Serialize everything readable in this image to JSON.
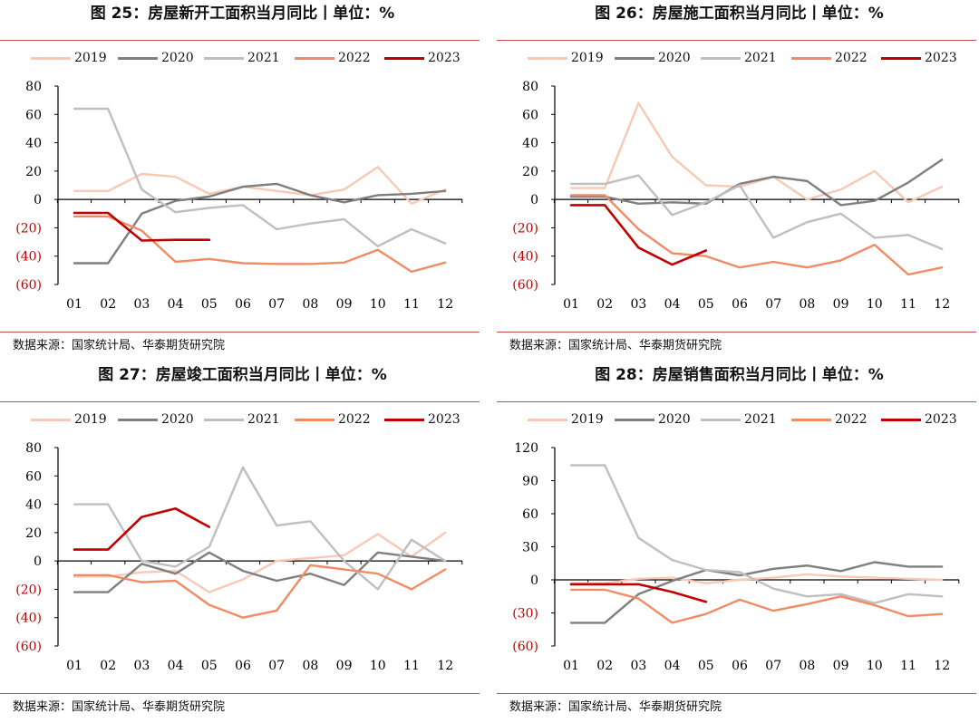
{
  "source_text": "数据来源：国家统计局、华泰期货研究院",
  "legend": [
    {
      "name": "2019",
      "color": "#f8c9b5"
    },
    {
      "name": "2020",
      "color": "#7f7f7f"
    },
    {
      "name": "2021",
      "color": "#bfbfbf"
    },
    {
      "name": "2022",
      "color": "#f08c64"
    },
    {
      "name": "2023",
      "color": "#c00000"
    }
  ],
  "chart_data": [
    {
      "type": "line",
      "title": "图 25：房屋新开工面积当月同比丨单位：%",
      "categories": [
        "01",
        "02",
        "03",
        "04",
        "05",
        "06",
        "07",
        "08",
        "09",
        "10",
        "11",
        "12"
      ],
      "ylim": [
        -60,
        80
      ],
      "yticks": [
        {
          "v": 80,
          "label": "80"
        },
        {
          "v": 60,
          "label": "60"
        },
        {
          "v": 40,
          "label": "40"
        },
        {
          "v": 20,
          "label": "20"
        },
        {
          "v": 0,
          "label": "0"
        },
        {
          "v": -20,
          "label": "(20)"
        },
        {
          "v": -40,
          "label": "(40)"
        },
        {
          "v": -60,
          "label": "(60)"
        }
      ],
      "series": [
        {
          "name": "2019",
          "values": [
            6,
            6,
            18,
            16,
            4,
            9,
            6,
            3,
            7,
            23,
            -3,
            7
          ]
        },
        {
          "name": "2020",
          "values": [
            -45,
            -45,
            -10,
            -1,
            2,
            9,
            11,
            3,
            -2,
            3,
            4,
            6
          ]
        },
        {
          "name": "2021",
          "values": [
            64,
            64,
            7,
            -9,
            -6,
            -4,
            -21,
            -17,
            -14,
            -33,
            -21,
            -31
          ]
        },
        {
          "name": "2022",
          "values": [
            -12,
            -12,
            -22,
            -44,
            -42,
            -45,
            -45.5,
            -45.5,
            -44.5,
            -35.5,
            -51,
            -44.5
          ]
        },
        {
          "name": "2023",
          "values": [
            -9.5,
            -9.5,
            -29,
            -28.5,
            -28.5,
            null,
            null,
            null,
            null,
            null,
            null,
            null
          ]
        }
      ]
    },
    {
      "type": "line",
      "title": "图 26：房屋施工面积当月同比丨单位：%",
      "categories": [
        "01",
        "02",
        "03",
        "04",
        "05",
        "06",
        "07",
        "08",
        "09",
        "10",
        "11",
        "12"
      ],
      "ylim": [
        -60,
        80
      ],
      "yticks": [
        {
          "v": 80,
          "label": "80"
        },
        {
          "v": 60,
          "label": "60"
        },
        {
          "v": 40,
          "label": "40"
        },
        {
          "v": 20,
          "label": "20"
        },
        {
          "v": 0,
          "label": "0"
        },
        {
          "v": -20,
          "label": "(20)"
        },
        {
          "v": -40,
          "label": "(40)"
        },
        {
          "v": -60,
          "label": "(60)"
        }
      ],
      "series": [
        {
          "name": "2019",
          "values": [
            8,
            8,
            68,
            30,
            10,
            9,
            16,
            0,
            7,
            20,
            -2,
            9
          ]
        },
        {
          "name": "2020",
          "values": [
            2,
            2,
            -3,
            -2,
            -3,
            11,
            16,
            13,
            -4,
            -1,
            12,
            28
          ]
        },
        {
          "name": "2021",
          "values": [
            11,
            11,
            17,
            -11,
            -2,
            10,
            -27,
            -16,
            -10,
            -27,
            -25,
            -35
          ]
        },
        {
          "name": "2022",
          "values": [
            3,
            3,
            -21,
            -38,
            -40,
            -48,
            -44,
            -48,
            -43,
            -32,
            -53,
            -48
          ]
        },
        {
          "name": "2023",
          "values": [
            -4,
            -4,
            -34,
            -46,
            -36,
            null,
            null,
            null,
            null,
            null,
            null,
            null
          ]
        }
      ]
    },
    {
      "type": "line",
      "title": "图 27：房屋竣工面积当月同比丨单位：%",
      "categories": [
        "01",
        "02",
        "03",
        "04",
        "05",
        "06",
        "07",
        "08",
        "09",
        "10",
        "11",
        "12"
      ],
      "ylim": [
        -60,
        80
      ],
      "yticks": [
        {
          "v": 80,
          "label": "80"
        },
        {
          "v": 60,
          "label": "60"
        },
        {
          "v": 40,
          "label": "40"
        },
        {
          "v": 20,
          "label": "20"
        },
        {
          "v": 0,
          "label": "0"
        },
        {
          "v": -20,
          "label": "(20)"
        },
        {
          "v": -40,
          "label": "(40)"
        },
        {
          "v": -60,
          "label": "(60)"
        }
      ],
      "series": [
        {
          "name": "2019",
          "values": [
            -11,
            -11,
            -8,
            -7,
            -22,
            -13,
            0,
            2,
            4,
            19,
            3,
            20
          ]
        },
        {
          "name": "2020",
          "values": [
            -22,
            -22,
            -2,
            -9,
            6,
            -7,
            -14,
            -9,
            -17,
            6,
            3,
            0
          ]
        },
        {
          "name": "2021",
          "values": [
            40,
            40,
            0,
            -4,
            10,
            66,
            25,
            28,
            0,
            -20,
            15,
            0
          ]
        },
        {
          "name": "2022",
          "values": [
            -10,
            -10,
            -15,
            -14,
            -31,
            -40,
            -35,
            -3,
            -6,
            -9,
            -20,
            -6
          ]
        },
        {
          "name": "2023",
          "values": [
            8,
            8,
            31,
            37,
            24,
            null,
            null,
            null,
            null,
            null,
            null,
            null
          ]
        }
      ]
    },
    {
      "type": "line",
      "title": "图 28：房屋销售面积当月同比丨单位：%",
      "categories": [
        "01",
        "02",
        "03",
        "04",
        "05",
        "06",
        "07",
        "08",
        "09",
        "10",
        "11",
        "12"
      ],
      "ylim": [
        -60,
        120
      ],
      "yticks": [
        {
          "v": 120,
          "label": "120"
        },
        {
          "v": 90,
          "label": "90"
        },
        {
          "v": 60,
          "label": "60"
        },
        {
          "v": 30,
          "label": "30"
        },
        {
          "v": 0,
          "label": "0"
        },
        {
          "v": -30,
          "label": "(30)"
        },
        {
          "v": -60,
          "label": "(60)"
        }
      ],
      "series": [
        {
          "name": "2019",
          "values": [
            -3,
            -3,
            1,
            2,
            -3,
            0,
            2,
            5,
            3,
            2,
            1,
            0
          ]
        },
        {
          "name": "2020",
          "values": [
            -39,
            -39,
            -13,
            -1,
            9,
            4,
            10,
            13,
            8,
            16,
            12,
            12
          ]
        },
        {
          "name": "2021",
          "values": [
            104,
            104,
            38,
            18,
            9,
            7,
            -8,
            -15,
            -13,
            -21,
            -13,
            -15
          ]
        },
        {
          "name": "2022",
          "values": [
            -9,
            -9,
            -17,
            -39,
            -31,
            -18,
            -28,
            -22,
            -15,
            -23,
            -33,
            -31
          ]
        },
        {
          "name": "2023",
          "values": [
            -4,
            -4,
            -4,
            -11,
            -20,
            null,
            null,
            null,
            null,
            null,
            null,
            null
          ]
        }
      ]
    }
  ]
}
